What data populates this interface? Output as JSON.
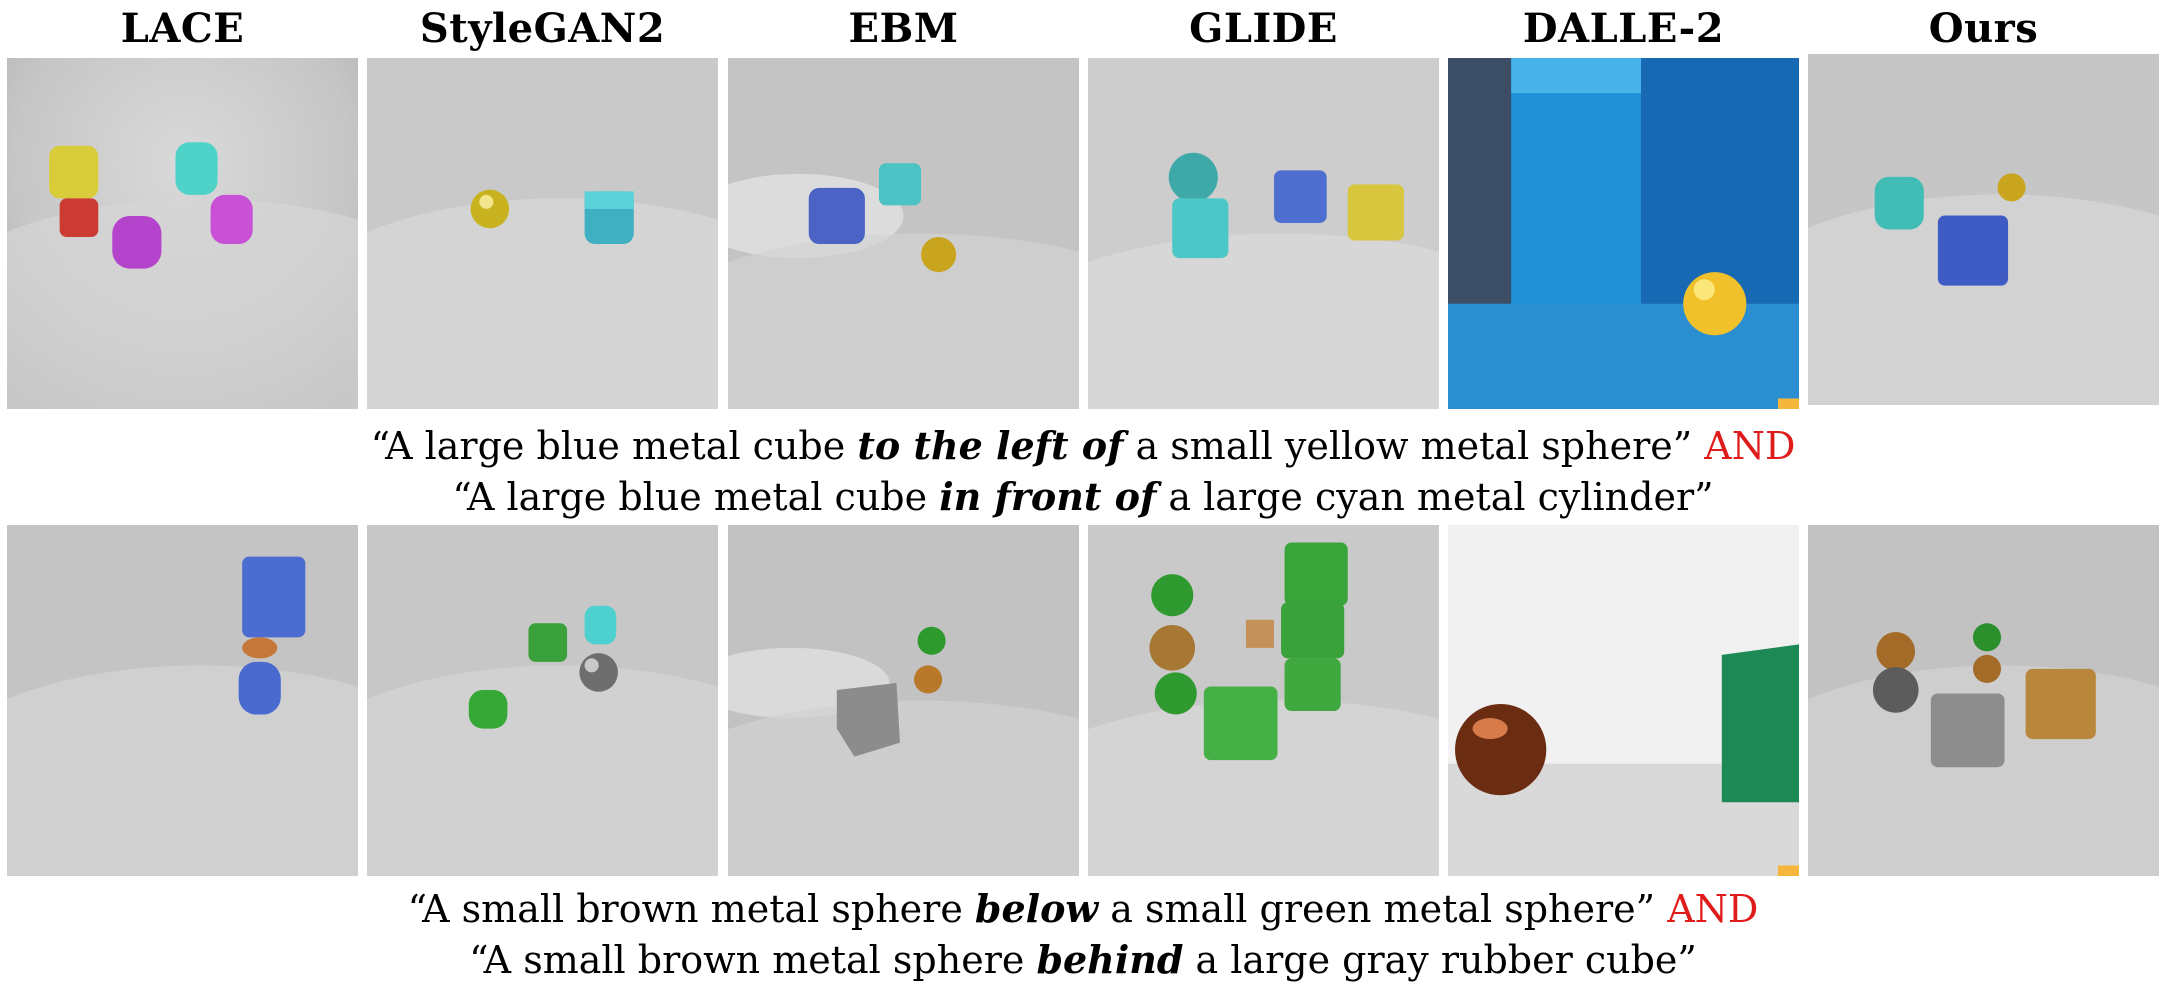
{
  "columns": [
    "LACE",
    "StyleGAN2",
    "EBM",
    "GLIDE",
    "DALLE-2",
    "Ours"
  ],
  "rows": [
    {
      "caption_line1": {
        "open": "“A large blue metal cube ",
        "relation": "to the left of",
        "close": " a small yellow metal sphere”",
        "connector": "AND"
      },
      "caption_line2": {
        "open": "“A large blue metal cube ",
        "relation": "in front of",
        "close": " a large cyan metal cylinder”"
      }
    },
    {
      "caption_line1": {
        "open": "“A small brown metal sphere ",
        "relation": "below",
        "close": " a small green metal sphere”",
        "connector": "AND"
      },
      "caption_line2": {
        "open": "“A small brown metal sphere ",
        "relation": "behind",
        "close": " a large gray rubber cube”"
      }
    }
  ],
  "colors": {
    "connector": "#e01b1b"
  }
}
